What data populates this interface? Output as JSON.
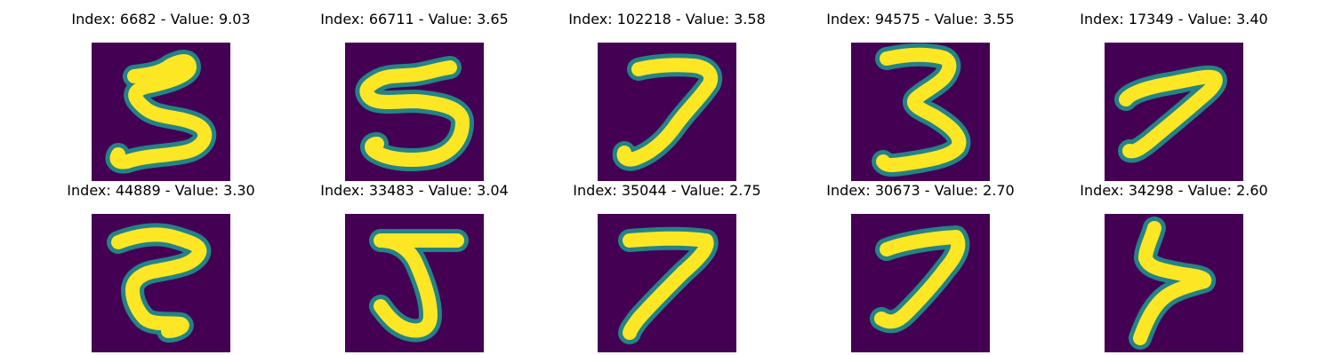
{
  "colors": {
    "background": "#440154",
    "stroke_edge": "#21918c",
    "stroke_core": "#fde725"
  },
  "items": [
    {
      "index": "6682",
      "value": "9.03",
      "title": "Index: 6682 - Value: 9.03",
      "digit": "5"
    },
    {
      "index": "66711",
      "value": "3.65",
      "title": "Index: 66711 - Value: 3.65",
      "digit": "5"
    },
    {
      "index": "102218",
      "value": "3.58",
      "title": "Index: 102218 - Value: 3.58",
      "digit": "7"
    },
    {
      "index": "94575",
      "value": "3.55",
      "title": "Index: 94575 - Value: 3.55",
      "digit": "3"
    },
    {
      "index": "17349",
      "value": "3.40",
      "title": "Index: 17349 - Value: 3.40",
      "digit": "7"
    },
    {
      "index": "44889",
      "value": "3.30",
      "title": "Index: 44889 - Value: 3.30",
      "digit": "2"
    },
    {
      "index": "33483",
      "value": "3.04",
      "title": "Index: 33483 - Value: 3.04",
      "digit": "5"
    },
    {
      "index": "35044",
      "value": "2.75",
      "title": "Index: 35044 - Value: 2.75",
      "digit": "7"
    },
    {
      "index": "30673",
      "value": "2.70",
      "title": "Index: 30673 - Value: 2.70",
      "digit": "7"
    },
    {
      "index": "34298",
      "value": "2.60",
      "title": "Index: 34298 - Value: 2.60",
      "digit": "7"
    }
  ]
}
